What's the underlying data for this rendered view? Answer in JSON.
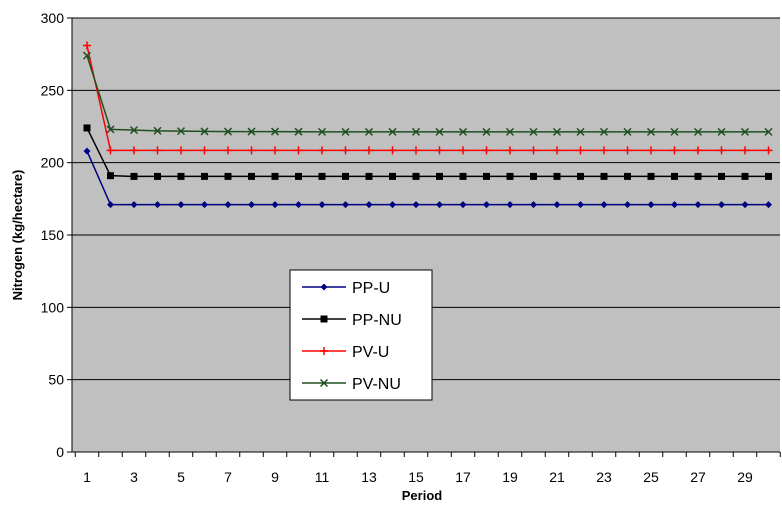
{
  "chart_data": {
    "type": "line",
    "title": "",
    "xlabel": "Period",
    "ylabel": "Nitrogen (kg/hectare)",
    "xlim": [
      1,
      30
    ],
    "ylim": [
      0,
      300
    ],
    "y_ticks": [
      0,
      50,
      100,
      150,
      200,
      250,
      300
    ],
    "x_tick_labels": [
      "1",
      "3",
      "5",
      "7",
      "9",
      "11",
      "13",
      "15",
      "17",
      "19",
      "21",
      "23",
      "25",
      "27",
      "29"
    ],
    "grid": "horizontal",
    "plot_background": "#C0C0C0",
    "legend_position": "center-left",
    "x": [
      1,
      2,
      3,
      4,
      5,
      6,
      7,
      8,
      9,
      10,
      11,
      12,
      13,
      14,
      15,
      16,
      17,
      18,
      19,
      20,
      21,
      22,
      23,
      24,
      25,
      26,
      27,
      28,
      29,
      30
    ],
    "series": [
      {
        "name": "PP-U",
        "color": "#000080",
        "marker": "diamond",
        "values": [
          208,
          171,
          171,
          171,
          171,
          171,
          171,
          171,
          171,
          171,
          171,
          171,
          171,
          171,
          171,
          171,
          171,
          171,
          171,
          171,
          171,
          171,
          171,
          171,
          171,
          171,
          171,
          171,
          171,
          171
        ]
      },
      {
        "name": "PP-NU",
        "color": "#000000",
        "marker": "square",
        "values": [
          224,
          191,
          190.5,
          190.5,
          190.5,
          190.5,
          190.5,
          190.5,
          190.5,
          190.5,
          190.5,
          190.5,
          190.5,
          190.5,
          190.5,
          190.5,
          190.5,
          190.5,
          190.5,
          190.5,
          190.5,
          190.5,
          190.5,
          190.5,
          190.5,
          190.5,
          190.5,
          190.5,
          190.5,
          190.5
        ]
      },
      {
        "name": "PV-U",
        "color": "#FF0000",
        "marker": "plus",
        "values": [
          281,
          208.5,
          208.5,
          208.5,
          208.5,
          208.5,
          208.5,
          208.5,
          208.5,
          208.5,
          208.5,
          208.5,
          208.5,
          208.5,
          208.5,
          208.5,
          208.5,
          208.5,
          208.5,
          208.5,
          208.5,
          208.5,
          208.5,
          208.5,
          208.5,
          208.5,
          208.5,
          208.5,
          208.5,
          208.5
        ]
      },
      {
        "name": "PV-NU",
        "color": "#1F4F1F",
        "marker": "x",
        "values": [
          274,
          223,
          222.5,
          222,
          221.8,
          221.6,
          221.5,
          221.5,
          221.5,
          221.4,
          221.3,
          221.3,
          221.3,
          221.3,
          221.3,
          221.3,
          221.3,
          221.3,
          221.3,
          221.3,
          221.3,
          221.3,
          221.3,
          221.3,
          221.3,
          221.3,
          221.3,
          221.3,
          221.3,
          221.3
        ]
      }
    ]
  }
}
